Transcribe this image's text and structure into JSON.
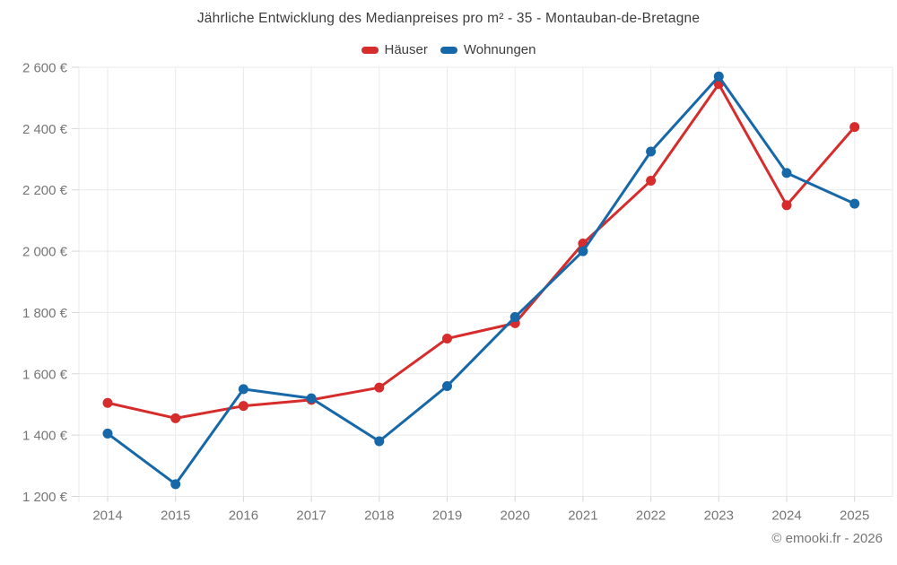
{
  "chart_data": {
    "type": "line",
    "title": "Jährliche Entwicklung des Medianpreises pro m² - 35 - Montauban-de-Bretagne",
    "categories": [
      "2014",
      "2015",
      "2016",
      "2017",
      "2018",
      "2019",
      "2020",
      "2021",
      "2022",
      "2023",
      "2024",
      "2025"
    ],
    "series": [
      {
        "name": "Häuser",
        "color": "#d62c2c",
        "values": [
          1505,
          1455,
          1495,
          1515,
          1555,
          1715,
          1765,
          2025,
          2230,
          2545,
          2150,
          2405
        ]
      },
      {
        "name": "Wohnungen",
        "color": "#1668a8",
        "values": [
          1405,
          1240,
          1550,
          1520,
          1380,
          1560,
          1785,
          2000,
          2325,
          2570,
          2255,
          2155
        ]
      }
    ],
    "ylim": [
      1200,
      2600
    ],
    "y_tick_step": 200,
    "y_tick_labels": [
      "1 200 €",
      "1 400 €",
      "1 600 €",
      "1 800 €",
      "2 000 €",
      "2 200 €",
      "2 400 €",
      "2 600 €"
    ],
    "xlabel": "",
    "ylabel": "",
    "grid": true,
    "legend_position": "top"
  },
  "footer": {
    "credit": "© emooki.fr - 2026"
  }
}
